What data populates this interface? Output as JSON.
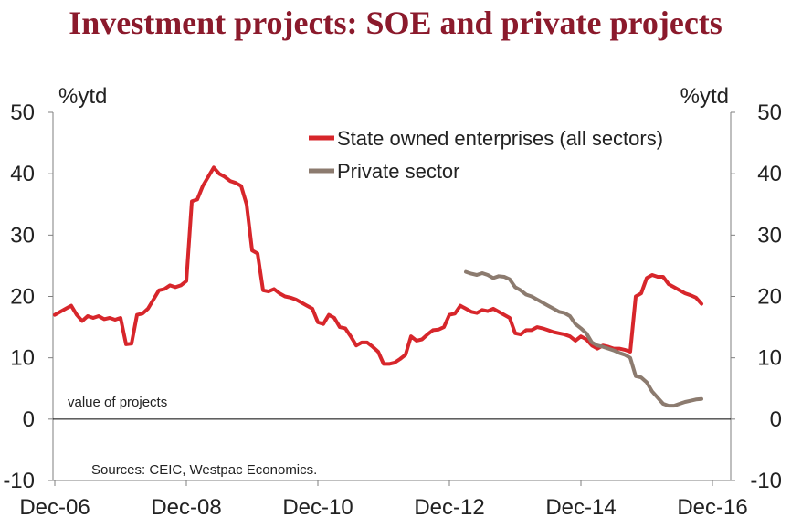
{
  "title": "Investment projects: SOE and private projects",
  "colors": {
    "title": "#8b1a2c",
    "soe": "#d7262b",
    "private": "#8c7b6f"
  },
  "chart_data": {
    "type": "line",
    "title": "Investment projects: SOE and private projects",
    "ylabel_left": "%ytd",
    "ylabel_right": "%ytd",
    "ylim": [
      -10,
      50
    ],
    "yticks": [
      -10,
      0,
      10,
      20,
      30,
      40,
      50
    ],
    "xlim": [
      0,
      120
    ],
    "xticks": [
      {
        "x": 0,
        "label": "Dec-06"
      },
      {
        "x": 24,
        "label": "Dec-08"
      },
      {
        "x": 48,
        "label": "Dec-10"
      },
      {
        "x": 72,
        "label": "Dec-12"
      },
      {
        "x": 96,
        "label": "Dec-14"
      },
      {
        "x": 120,
        "label": "Dec-16"
      }
    ],
    "annotation": "value of projects",
    "source": "Sources: CEIC, Westpac Economics.",
    "series": [
      {
        "name": "State owned enterprises (all sectors)",
        "color": "#d7262b",
        "points": [
          [
            0,
            17
          ],
          [
            1,
            17.5
          ],
          [
            2,
            18
          ],
          [
            3,
            18.5
          ],
          [
            4,
            17
          ],
          [
            5,
            16
          ],
          [
            6,
            16.8
          ],
          [
            7,
            16.5
          ],
          [
            8,
            16.8
          ],
          [
            9,
            16.3
          ],
          [
            10,
            16.5
          ],
          [
            11,
            16.2
          ],
          [
            12,
            16.5
          ],
          [
            13,
            12.2
          ],
          [
            14,
            12.3
          ],
          [
            15,
            17
          ],
          [
            16,
            17.2
          ],
          [
            17,
            18
          ],
          [
            18,
            19.5
          ],
          [
            19,
            21
          ],
          [
            20,
            21.2
          ],
          [
            21,
            21.8
          ],
          [
            22,
            21.5
          ],
          [
            23,
            21.8
          ],
          [
            24,
            22.5
          ],
          [
            25,
            35.5
          ],
          [
            26,
            35.8
          ],
          [
            27,
            38
          ],
          [
            28,
            39.5
          ],
          [
            29,
            41
          ],
          [
            30,
            40
          ],
          [
            31,
            39.5
          ],
          [
            32,
            38.8
          ],
          [
            33,
            38.5
          ],
          [
            34,
            38
          ],
          [
            35,
            35
          ],
          [
            36,
            27.5
          ],
          [
            37,
            27
          ],
          [
            38,
            21
          ],
          [
            39,
            20.8
          ],
          [
            40,
            21.2
          ],
          [
            41,
            20.5
          ],
          [
            42,
            20
          ],
          [
            43,
            19.8
          ],
          [
            44,
            19.5
          ],
          [
            45,
            19
          ],
          [
            46,
            18.5
          ],
          [
            47,
            18
          ],
          [
            48,
            15.8
          ],
          [
            49,
            15.5
          ],
          [
            50,
            17
          ],
          [
            51,
            16.5
          ],
          [
            52,
            15
          ],
          [
            53,
            14.8
          ],
          [
            54,
            13.5
          ],
          [
            55,
            12
          ],
          [
            56,
            12.5
          ],
          [
            57,
            12.5
          ],
          [
            58,
            11.8
          ],
          [
            59,
            11
          ],
          [
            60,
            9
          ],
          [
            61,
            9
          ],
          [
            62,
            9.2
          ],
          [
            63,
            9.8
          ],
          [
            64,
            10.5
          ],
          [
            65,
            13.5
          ],
          [
            66,
            12.8
          ],
          [
            67,
            13
          ],
          [
            68,
            13.8
          ],
          [
            69,
            14.5
          ],
          [
            70,
            14.6
          ],
          [
            71,
            15
          ],
          [
            72,
            17
          ],
          [
            73,
            17.2
          ],
          [
            74,
            18.5
          ],
          [
            75,
            18
          ],
          [
            76,
            17.5
          ],
          [
            77,
            17.3
          ],
          [
            78,
            17.8
          ],
          [
            79,
            17.6
          ],
          [
            80,
            18
          ],
          [
            81,
            17.5
          ],
          [
            82,
            17
          ],
          [
            83,
            16.5
          ],
          [
            84,
            14
          ],
          [
            85,
            13.8
          ],
          [
            86,
            14.5
          ],
          [
            87,
            14.5
          ],
          [
            88,
            15
          ],
          [
            89,
            14.8
          ],
          [
            90,
            14.5
          ],
          [
            91,
            14.2
          ],
          [
            92,
            14
          ],
          [
            93,
            13.8
          ],
          [
            94,
            13.5
          ],
          [
            95,
            12.8
          ],
          [
            96,
            13.5
          ],
          [
            97,
            13
          ],
          [
            98,
            12
          ],
          [
            99,
            11.5
          ],
          [
            100,
            12
          ],
          [
            101,
            11.8
          ],
          [
            102,
            11.5
          ],
          [
            103,
            11.5
          ],
          [
            104,
            11.3
          ],
          [
            105,
            11
          ],
          [
            106,
            20
          ],
          [
            107,
            20.5
          ],
          [
            108,
            23
          ],
          [
            109,
            23.5
          ],
          [
            110,
            23.2
          ],
          [
            111,
            23.2
          ],
          [
            112,
            22
          ],
          [
            113,
            21.5
          ],
          [
            114,
            21
          ],
          [
            115,
            20.5
          ],
          [
            116,
            20.2
          ],
          [
            117,
            19.8
          ],
          [
            118,
            18.8
          ]
        ]
      },
      {
        "name": "Private sector",
        "color": "#8c7b6f",
        "points": [
          [
            75,
            24
          ],
          [
            76,
            23.7
          ],
          [
            77,
            23.5
          ],
          [
            78,
            23.8
          ],
          [
            79,
            23.5
          ],
          [
            80,
            23
          ],
          [
            81,
            23.3
          ],
          [
            82,
            23.2
          ],
          [
            83,
            22.8
          ],
          [
            84,
            21.5
          ],
          [
            85,
            21
          ],
          [
            86,
            20.3
          ],
          [
            87,
            20
          ],
          [
            88,
            19.5
          ],
          [
            89,
            19
          ],
          [
            90,
            18.5
          ],
          [
            91,
            18
          ],
          [
            92,
            17.5
          ],
          [
            93,
            17.3
          ],
          [
            94,
            16.8
          ],
          [
            95,
            15.5
          ],
          [
            96,
            14.8
          ],
          [
            97,
            14
          ],
          [
            98,
            12.5
          ],
          [
            99,
            12
          ],
          [
            100,
            11.8
          ],
          [
            101,
            11.5
          ],
          [
            102,
            11.2
          ],
          [
            103,
            10.8
          ],
          [
            104,
            10.5
          ],
          [
            105,
            10
          ],
          [
            106,
            7
          ],
          [
            107,
            6.8
          ],
          [
            108,
            6
          ],
          [
            109,
            4.5
          ],
          [
            110,
            3.5
          ],
          [
            111,
            2.5
          ],
          [
            112,
            2.2
          ],
          [
            113,
            2.2
          ],
          [
            114,
            2.5
          ],
          [
            115,
            2.8
          ],
          [
            116,
            3
          ],
          [
            117,
            3.2
          ],
          [
            118,
            3.3
          ]
        ]
      }
    ]
  }
}
